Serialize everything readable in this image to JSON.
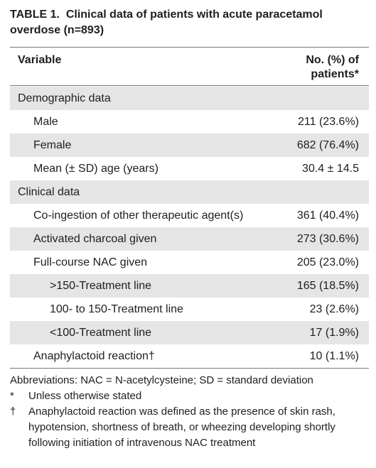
{
  "title": {
    "label": "TABLE 1.",
    "text": "Clinical data of patients with acute paracetamol overdose (n=893)"
  },
  "table": {
    "header": [
      "Variable",
      "No. (%) of patients*"
    ],
    "rows": [
      [
        "Demographic data"
      ],
      [
        "Male",
        "211 (23.6%)"
      ],
      [
        "Female",
        "682 (76.4%)"
      ],
      [
        "Mean (± SD) age (years)",
        "30.4 ± 14.5"
      ],
      [
        "Clinical data"
      ],
      [
        "Co-ingestion of other therapeutic agent(s)",
        "361 (40.4%)"
      ],
      [
        "Activated charcoal given",
        "273 (30.6%)"
      ],
      [
        "Full-course NAC given",
        "205 (23.0%)"
      ],
      [
        ">150-Treatment line",
        "165 (18.5%)"
      ],
      [
        "100- to 150-Treatment line",
        "23 (2.6%)"
      ],
      [
        "<100-Treatment line",
        "17 (1.9%)"
      ],
      [
        "Anaphylactoid reaction†",
        "10 (1.1%)"
      ]
    ]
  },
  "footnotes": {
    "abbreviations": "Abbreviations: NAC = N-acetylcysteine; SD = standard deviation",
    "notes": [
      {
        "symbol": "*",
        "text": "Unless otherwise stated"
      },
      {
        "symbol": "†",
        "text": "Anaphylactoid reaction was defined as the presence of skin rash, hypotension, shortness of breath, or wheezing developing shortly following initiation of intravenous NAC treatment"
      }
    ]
  }
}
